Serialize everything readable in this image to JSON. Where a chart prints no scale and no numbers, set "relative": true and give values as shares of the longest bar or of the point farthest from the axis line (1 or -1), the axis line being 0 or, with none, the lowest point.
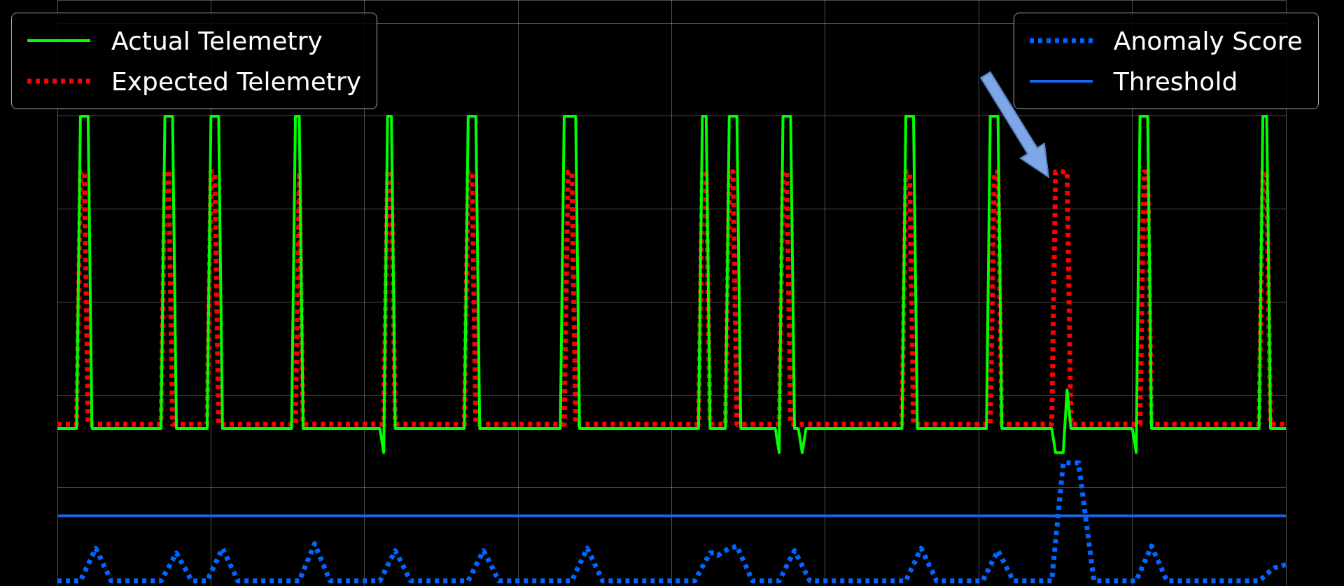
{
  "chart_data": {
    "type": "line",
    "relative": true,
    "grid": true,
    "legend": "top",
    "categories": [
      null,
      null,
      null,
      null,
      null,
      null,
      null,
      null,
      null,
      null,
      null,
      null,
      null,
      null,
      null,
      null,
      null,
      null,
      null,
      null,
      null,
      null,
      null,
      null,
      null,
      null,
      null,
      null,
      null,
      null,
      null,
      null,
      null,
      null,
      null,
      null,
      null,
      null,
      null,
      null,
      null,
      null,
      null,
      null,
      null,
      null,
      null,
      null,
      null,
      null,
      null,
      null,
      null,
      null,
      null,
      null,
      null,
      null,
      null,
      null,
      null,
      null,
      null,
      null,
      null,
      null,
      null,
      null,
      null,
      null,
      null,
      null,
      null,
      null,
      null,
      null,
      null,
      null,
      null,
      null,
      null,
      null,
      null,
      null,
      null,
      null,
      null,
      null,
      null,
      null,
      null,
      null,
      null,
      null,
      null,
      null,
      null,
      null,
      null,
      null,
      null,
      null,
      null,
      null,
      null,
      null,
      null,
      null,
      null,
      null,
      null,
      null,
      null,
      null,
      null,
      null,
      null,
      null,
      null,
      null,
      null,
      null,
      null,
      null,
      null,
      null,
      null,
      null,
      null,
      null,
      null,
      null,
      null,
      null,
      null,
      null,
      null,
      null,
      null,
      null,
      null,
      null,
      null,
      null,
      null,
      null,
      null,
      null,
      null,
      null,
      null,
      null,
      null,
      null,
      null,
      null,
      null,
      null,
      null,
      null,
      null,
      null,
      null,
      null,
      null,
      null,
      null,
      null,
      null,
      null,
      null,
      null,
      null,
      null,
      null,
      null,
      null,
      null,
      null,
      null,
      null,
      null,
      null,
      null,
      null,
      null,
      null,
      null,
      null,
      null,
      null,
      null,
      null,
      null,
      null,
      null,
      null,
      null,
      null,
      null,
      null,
      null,
      null,
      null,
      null,
      null,
      null,
      null,
      null,
      null,
      null,
      null,
      null,
      null,
      null,
      null,
      null,
      null,
      null,
      null,
      null,
      null,
      null,
      null,
      null,
      null,
      null,
      null,
      null,
      null,
      null,
      null,
      null,
      null,
      null,
      null,
      null,
      null,
      null,
      null,
      null,
      null,
      null,
      null,
      null,
      null,
      null,
      null,
      null,
      null,
      null,
      null,
      null,
      null,
      null,
      null,
      null,
      null,
      null,
      null,
      null,
      null,
      null,
      null,
      null,
      null,
      null,
      null,
      null,
      null,
      null,
      null,
      null,
      null,
      null,
      null,
      null,
      null,
      null,
      null,
      null,
      null,
      null,
      null,
      null,
      null,
      null,
      null,
      null,
      null,
      null,
      null,
      null,
      null,
      null,
      null,
      null,
      null,
      null,
      null,
      null,
      null,
      null,
      null,
      null,
      null,
      null,
      null,
      null,
      null,
      null,
      null,
      null,
      null,
      null,
      null,
      null,
      null,
      null,
      null,
      null
    ],
    "series": [
      {
        "name": "Actual Telemetry",
        "color": "#00ff00",
        "line_style": "solid",
        "values": [
          0.328,
          0.328,
          0.328,
          0.328,
          0.328,
          0.328,
          1,
          1,
          1,
          0.328,
          0.328,
          0.328,
          0.328,
          0.328,
          0.328,
          0.328,
          0.328,
          0.328,
          0.328,
          0.328,
          0.328,
          0.328,
          0.328,
          0.328,
          0.328,
          0.328,
          0.328,
          0.328,
          1,
          1,
          1,
          0.328,
          0.328,
          0.328,
          0.328,
          0.328,
          0.328,
          0.328,
          0.328,
          0.328,
          1,
          1,
          1,
          0.328,
          0.328,
          0.328,
          0.328,
          0.328,
          0.328,
          0.328,
          0.328,
          0.328,
          0.328,
          0.328,
          0.328,
          0.328,
          0.328,
          0.328,
          0.328,
          0.328,
          0.328,
          0.328,
          1,
          1,
          0.328,
          0.328,
          0.328,
          0.328,
          0.328,
          0.328,
          0.328,
          0.328,
          0.328,
          0.328,
          0.328,
          0.328,
          0.328,
          0.328,
          0.328,
          0.328,
          0.328,
          0.328,
          0.328,
          0.328,
          0.328,
          0.276,
          1,
          1,
          0.328,
          0.328,
          0.328,
          0.328,
          0.328,
          0.328,
          0.328,
          0.328,
          0.328,
          0.328,
          0.328,
          0.328,
          0.328,
          0.328,
          0.328,
          0.328,
          0.328,
          0.328,
          0.328,
          1,
          1,
          1,
          0.328,
          0.328,
          0.328,
          0.328,
          0.328,
          0.328,
          0.328,
          0.328,
          0.328,
          0.328,
          0.328,
          0.328,
          0.328,
          0.328,
          0.328,
          0.328,
          0.328,
          0.328,
          0.328,
          0.328,
          0.328,
          0.328,
          1,
          1,
          1,
          1,
          0.328,
          0.328,
          0.328,
          0.328,
          0.328,
          0.328,
          0.328,
          0.328,
          0.328,
          0.328,
          0.328,
          0.328,
          0.328,
          0.328,
          0.328,
          0.328,
          0.328,
          0.328,
          0.328,
          0.328,
          0.328,
          0.328,
          0.328,
          0.328,
          0.328,
          0.328,
          0.328,
          0.328,
          0.328,
          0.328,
          0.328,
          0.328,
          1,
          1,
          0.328,
          0.328,
          0.328,
          0.328,
          0.328,
          1,
          1,
          1,
          0.328,
          0.328,
          0.328,
          0.328,
          0.328,
          0.328,
          0.328,
          0.328,
          0.328,
          0.328,
          0.276,
          1,
          1,
          1,
          0.328,
          0.328,
          0.276,
          0.328,
          0.328,
          0.328,
          0.328,
          0.328,
          0.328,
          0.328,
          0.328,
          0.328,
          0.328,
          0.328,
          0.328,
          0.328,
          0.328,
          0.328,
          0.328,
          0.328,
          0.328,
          0.328,
          0.328,
          0.328,
          0.328,
          0.328,
          0.328,
          0.328,
          0.328,
          1,
          1,
          1,
          0.328,
          0.328,
          0.328,
          0.328,
          0.328,
          0.328,
          0.328,
          0.328,
          0.328,
          0.328,
          0.328,
          0.328,
          0.328,
          0.328,
          0.328,
          0.328,
          0.328,
          0.328,
          0.328,
          1,
          1,
          1,
          0.328,
          0.328,
          0.328,
          0.328,
          0.328,
          0.328,
          0.328,
          0.328,
          0.328,
          0.328,
          0.328,
          0.328,
          0.328,
          0.328,
          0.276,
          0.276,
          0.276,
          0.411,
          0.328,
          0.328,
          0.328,
          0.328,
          0.328,
          0.328,
          0.328,
          0.328,
          0.328,
          0.328,
          0.328,
          0.328,
          0.328,
          0.328,
          0.328,
          0.328,
          0.328,
          0.276,
          1,
          1,
          1,
          0.328,
          0.328,
          0.328,
          0.328,
          0.328,
          0.328,
          0.328,
          0.328,
          0.328,
          0.328,
          0.328,
          0.328,
          0.328,
          0.328,
          0.328,
          0.328,
          0.328,
          0.328,
          0.328,
          0.328,
          0.328,
          0.328,
          0.328,
          0.328,
          0.328,
          0.328,
          0.328,
          0.328,
          0.328,
          1,
          1,
          0.328,
          0.328,
          0.328,
          0.328,
          0.328
        ]
      },
      {
        "name": "Expected Telemetry",
        "color": "#ff0000",
        "line_style": "dotted",
        "values": [
          0.337,
          0.337,
          0.337,
          0.337,
          0.337,
          0.337,
          0.88,
          0.88,
          0.337,
          0.337,
          0.337,
          0.337,
          0.337,
          0.337,
          0.337,
          0.337,
          0.337,
          0.337,
          0.337,
          0.337,
          0.337,
          0.337,
          0.337,
          0.337,
          0.337,
          0.337,
          0.337,
          0.337,
          0.88,
          0.88,
          0.337,
          0.337,
          0.337,
          0.337,
          0.337,
          0.337,
          0.337,
          0.337,
          0.337,
          0.337,
          0.88,
          0.88,
          0.337,
          0.337,
          0.337,
          0.337,
          0.337,
          0.337,
          0.337,
          0.337,
          0.337,
          0.337,
          0.337,
          0.337,
          0.337,
          0.337,
          0.337,
          0.337,
          0.337,
          0.337,
          0.337,
          0.337,
          0.337,
          0.88,
          0.337,
          0.337,
          0.337,
          0.337,
          0.337,
          0.337,
          0.337,
          0.337,
          0.337,
          0.337,
          0.337,
          0.337,
          0.337,
          0.337,
          0.337,
          0.337,
          0.337,
          0.337,
          0.337,
          0.337,
          0.337,
          0.337,
          0.88,
          0.88,
          0.337,
          0.337,
          0.337,
          0.337,
          0.337,
          0.337,
          0.337,
          0.337,
          0.337,
          0.337,
          0.337,
          0.337,
          0.337,
          0.337,
          0.337,
          0.337,
          0.337,
          0.337,
          0.337,
          0.88,
          0.88,
          0.337,
          0.337,
          0.337,
          0.337,
          0.337,
          0.337,
          0.337,
          0.337,
          0.337,
          0.337,
          0.337,
          0.337,
          0.337,
          0.337,
          0.337,
          0.337,
          0.337,
          0.337,
          0.337,
          0.337,
          0.337,
          0.337,
          0.337,
          0.337,
          0.88,
          0.88,
          0.337,
          0.337,
          0.337,
          0.337,
          0.337,
          0.337,
          0.337,
          0.337,
          0.337,
          0.337,
          0.337,
          0.337,
          0.337,
          0.337,
          0.337,
          0.337,
          0.337,
          0.337,
          0.337,
          0.337,
          0.337,
          0.337,
          0.337,
          0.337,
          0.337,
          0.337,
          0.337,
          0.337,
          0.337,
          0.337,
          0.337,
          0.337,
          0.337,
          0.88,
          0.88,
          0.337,
          0.337,
          0.337,
          0.337,
          0.337,
          0.88,
          0.88,
          0.337,
          0.337,
          0.337,
          0.337,
          0.337,
          0.337,
          0.337,
          0.337,
          0.337,
          0.337,
          0.337,
          0.337,
          0.88,
          0.88,
          0.337,
          0.337,
          0.337,
          0.337,
          0.337,
          0.337,
          0.337,
          0.337,
          0.337,
          0.337,
          0.337,
          0.337,
          0.337,
          0.337,
          0.337,
          0.337,
          0.337,
          0.337,
          0.337,
          0.337,
          0.337,
          0.337,
          0.337,
          0.337,
          0.337,
          0.337,
          0.337,
          0.337,
          0.337,
          0.337,
          0.88,
          0.88,
          0.337,
          0.337,
          0.337,
          0.337,
          0.337,
          0.337,
          0.337,
          0.337,
          0.337,
          0.337,
          0.337,
          0.337,
          0.337,
          0.337,
          0.337,
          0.337,
          0.337,
          0.337,
          0.337,
          0.337,
          0.337,
          0.88,
          0.88,
          0.337,
          0.337,
          0.337,
          0.337,
          0.337,
          0.337,
          0.337,
          0.337,
          0.337,
          0.337,
          0.337,
          0.337,
          0.337,
          0.337,
          0.88,
          0.88,
          0.88,
          0.88,
          0.337,
          0.337,
          0.337,
          0.337,
          0.337,
          0.337,
          0.337,
          0.337,
          0.337,
          0.337,
          0.337,
          0.337,
          0.337,
          0.337,
          0.337,
          0.337,
          0.337,
          0.337,
          0.337,
          0.88,
          0.88,
          0.337,
          0.337,
          0.337,
          0.337,
          0.337,
          0.337,
          0.337,
          0.337,
          0.337,
          0.337,
          0.337,
          0.337,
          0.337,
          0.337,
          0.337,
          0.337,
          0.337,
          0.337,
          0.337,
          0.337,
          0.337,
          0.337,
          0.337,
          0.337,
          0.337,
          0.337,
          0.337,
          0.337,
          0.337,
          0.88,
          0.88,
          0.337,
          0.337,
          0.337,
          0.337,
          0.337
        ]
      },
      {
        "name": "Anomaly Score",
        "color": "#0066ff",
        "line_style": "dotted",
        "values": [
          0,
          0,
          0,
          0,
          0,
          0,
          0,
          0.018,
          0.035,
          0.053,
          0.07,
          0.053,
          0.035,
          0.018,
          0,
          0,
          0,
          0,
          0,
          0,
          0,
          0,
          0,
          0,
          0,
          0,
          0,
          0,
          0.015,
          0.03,
          0.045,
          0.06,
          0.045,
          0.03,
          0.015,
          0,
          0,
          0,
          0,
          0,
          0.018,
          0.035,
          0.053,
          0.07,
          0.053,
          0.035,
          0.018,
          0,
          0,
          0,
          0,
          0,
          0,
          0,
          0,
          0,
          0,
          0,
          0,
          0,
          0,
          0,
          0,
          0,
          0.02,
          0.04,
          0.06,
          0.08,
          0.06,
          0.04,
          0.02,
          0,
          0,
          0,
          0,
          0,
          0,
          0,
          0,
          0,
          0,
          0,
          0,
          0,
          0,
          0.016,
          0.033,
          0.049,
          0.065,
          0.049,
          0.033,
          0.016,
          0,
          0,
          0,
          0,
          0,
          0,
          0,
          0,
          0,
          0,
          0,
          0,
          0,
          0,
          0,
          0,
          0.016,
          0.033,
          0.049,
          0.065,
          0.049,
          0.033,
          0.016,
          0,
          0,
          0,
          0,
          0,
          0,
          0,
          0,
          0,
          0,
          0,
          0,
          0,
          0,
          0,
          0,
          0,
          0,
          0,
          0,
          0.018,
          0.035,
          0.053,
          0.07,
          0.053,
          0.035,
          0.018,
          0,
          0,
          0,
          0,
          0,
          0,
          0,
          0,
          0,
          0,
          0,
          0,
          0,
          0,
          0,
          0,
          0,
          0,
          0,
          0,
          0,
          0,
          0,
          0,
          0,
          0.015,
          0.03,
          0.045,
          0.06,
          0.06,
          0.055,
          0.06,
          0.065,
          0.07,
          0.072,
          0.075,
          0.056,
          0.038,
          0.019,
          0,
          0,
          0,
          0,
          0,
          0,
          0,
          0,
          0.016,
          0.033,
          0.049,
          0.065,
          0.049,
          0.033,
          0.016,
          0,
          0,
          0,
          0,
          0,
          0,
          0,
          0,
          0,
          0,
          0,
          0,
          0,
          0,
          0,
          0,
          0,
          0,
          0,
          0,
          0,
          0,
          0,
          0,
          0,
          0,
          0.018,
          0.035,
          0.053,
          0.07,
          0.053,
          0.035,
          0.018,
          0,
          0,
          0,
          0,
          0,
          0,
          0,
          0,
          0,
          0,
          0,
          0,
          0,
          0.016,
          0.033,
          0.049,
          0.065,
          0.049,
          0.033,
          0.016,
          0,
          0,
          0,
          0,
          0,
          0,
          0,
          0,
          0,
          0,
          0,
          0.085,
          0.17,
          0.254,
          0.254,
          0.254,
          0.254,
          0.254,
          0.19,
          0.127,
          0.063,
          0,
          0,
          0,
          0,
          0,
          0,
          0,
          0,
          0,
          0,
          0,
          0,
          0.019,
          0.038,
          0.056,
          0.075,
          0.056,
          0.038,
          0.019,
          0,
          0,
          0,
          0,
          0,
          0,
          0,
          0,
          0,
          0,
          0,
          0,
          0,
          0,
          0,
          0,
          0,
          0,
          0,
          0,
          0,
          0,
          0,
          0,
          0,
          0.007,
          0.015,
          0.022,
          0.028,
          0.03,
          0.033,
          0.035
        ]
      },
      {
        "name": "Threshold",
        "color": "#1a66ee",
        "line_style": "solid",
        "values": [
          0.14,
          0.14,
          0.14,
          0.14,
          0.14,
          0.14,
          0.14,
          0.14,
          0.14,
          0.14,
          0.14,
          0.14,
          0.14,
          0.14,
          0.14,
          0.14,
          0.14,
          0.14,
          0.14,
          0.14,
          0.14,
          0.14,
          0.14,
          0.14,
          0.14,
          0.14,
          0.14,
          0.14,
          0.14,
          0.14,
          0.14,
          0.14,
          0.14,
          0.14,
          0.14,
          0.14,
          0.14,
          0.14,
          0.14,
          0.14,
          0.14,
          0.14,
          0.14,
          0.14,
          0.14,
          0.14,
          0.14,
          0.14,
          0.14,
          0.14,
          0.14,
          0.14,
          0.14,
          0.14,
          0.14,
          0.14,
          0.14,
          0.14,
          0.14,
          0.14,
          0.14,
          0.14,
          0.14,
          0.14,
          0.14,
          0.14,
          0.14,
          0.14,
          0.14,
          0.14,
          0.14,
          0.14,
          0.14,
          0.14,
          0.14,
          0.14,
          0.14,
          0.14,
          0.14,
          0.14,
          0.14,
          0.14,
          0.14,
          0.14,
          0.14,
          0.14,
          0.14,
          0.14,
          0.14,
          0.14,
          0.14,
          0.14,
          0.14,
          0.14,
          0.14,
          0.14,
          0.14,
          0.14,
          0.14,
          0.14,
          0.14,
          0.14,
          0.14,
          0.14,
          0.14,
          0.14,
          0.14,
          0.14,
          0.14,
          0.14,
          0.14,
          0.14,
          0.14,
          0.14,
          0.14,
          0.14,
          0.14,
          0.14,
          0.14,
          0.14,
          0.14,
          0.14,
          0.14,
          0.14,
          0.14,
          0.14,
          0.14,
          0.14,
          0.14,
          0.14,
          0.14,
          0.14,
          0.14,
          0.14,
          0.14,
          0.14,
          0.14,
          0.14,
          0.14,
          0.14,
          0.14,
          0.14,
          0.14,
          0.14,
          0.14,
          0.14,
          0.14,
          0.14,
          0.14,
          0.14,
          0.14,
          0.14,
          0.14,
          0.14,
          0.14,
          0.14,
          0.14,
          0.14,
          0.14,
          0.14,
          0.14,
          0.14,
          0.14,
          0.14,
          0.14,
          0.14,
          0.14,
          0.14,
          0.14,
          0.14,
          0.14,
          0.14,
          0.14,
          0.14,
          0.14,
          0.14,
          0.14,
          0.14,
          0.14,
          0.14,
          0.14,
          0.14,
          0.14,
          0.14,
          0.14,
          0.14,
          0.14,
          0.14,
          0.14,
          0.14,
          0.14,
          0.14,
          0.14,
          0.14,
          0.14,
          0.14,
          0.14,
          0.14,
          0.14,
          0.14,
          0.14,
          0.14,
          0.14,
          0.14,
          0.14,
          0.14,
          0.14,
          0.14,
          0.14,
          0.14,
          0.14,
          0.14,
          0.14,
          0.14,
          0.14,
          0.14,
          0.14,
          0.14,
          0.14,
          0.14,
          0.14,
          0.14,
          0.14,
          0.14,
          0.14,
          0.14,
          0.14,
          0.14,
          0.14,
          0.14,
          0.14,
          0.14,
          0.14,
          0.14,
          0.14,
          0.14,
          0.14,
          0.14,
          0.14,
          0.14,
          0.14,
          0.14,
          0.14,
          0.14,
          0.14,
          0.14,
          0.14,
          0.14,
          0.14,
          0.14,
          0.14,
          0.14,
          0.14,
          0.14,
          0.14,
          0.14,
          0.14,
          0.14,
          0.14,
          0.14,
          0.14,
          0.14,
          0.14,
          0.14,
          0.14,
          0.14,
          0.14,
          0.14,
          0.14,
          0.14,
          0.14,
          0.14,
          0.14,
          0.14,
          0.14,
          0.14,
          0.14,
          0.14,
          0.14,
          0.14,
          0.14,
          0.14,
          0.14,
          0.14,
          0.14,
          0.14,
          0.14,
          0.14,
          0.14,
          0.14,
          0.14,
          0.14,
          0.14,
          0.14,
          0.14,
          0.14,
          0.14,
          0.14,
          0.14,
          0.14,
          0.14,
          0.14,
          0.14,
          0.14,
          0.14,
          0.14,
          0.14,
          0.14,
          0.14,
          0.14,
          0.14,
          0.14,
          0.14,
          0.14,
          0.14,
          0.14,
          0.14,
          0.14,
          0.14,
          0.14,
          0.14
        ]
      }
    ]
  }
}
